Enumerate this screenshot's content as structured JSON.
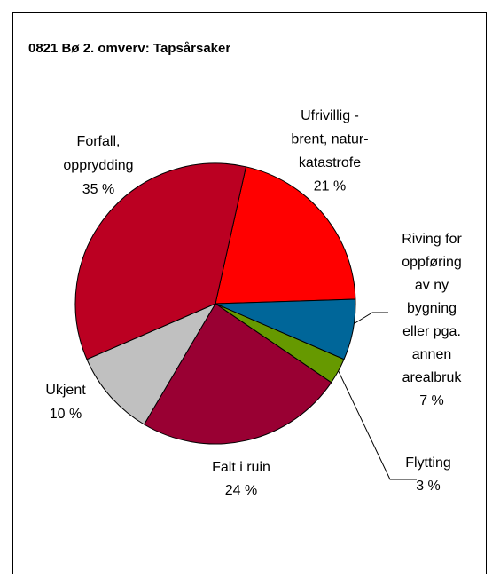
{
  "chart_data": {
    "type": "pie",
    "title": "0821 Bø 2. omverv: Tapsårsaker",
    "categories": [
      [
        "Ufrivillig -",
        "brent, natur-",
        "katastrofe"
      ],
      [
        "Riving for",
        "oppføring",
        "av ny",
        "bygning",
        "eller pga.",
        "annen",
        "arealbruk"
      ],
      [
        "Flytting"
      ],
      [
        "Falt i ruin"
      ],
      [
        "Ukjent"
      ],
      [
        "Forfall,",
        "opprydding"
      ]
    ],
    "values": [
      21,
      7,
      3,
      24,
      10,
      35
    ],
    "value_labels": [
      "21 %",
      "7 %",
      "3 %",
      "24 %",
      "10 %",
      "35 %"
    ],
    "colors": [
      "#ff0000",
      "#006699",
      "#669900",
      "#990033",
      "#c0c0c0",
      "#bb0022"
    ]
  }
}
